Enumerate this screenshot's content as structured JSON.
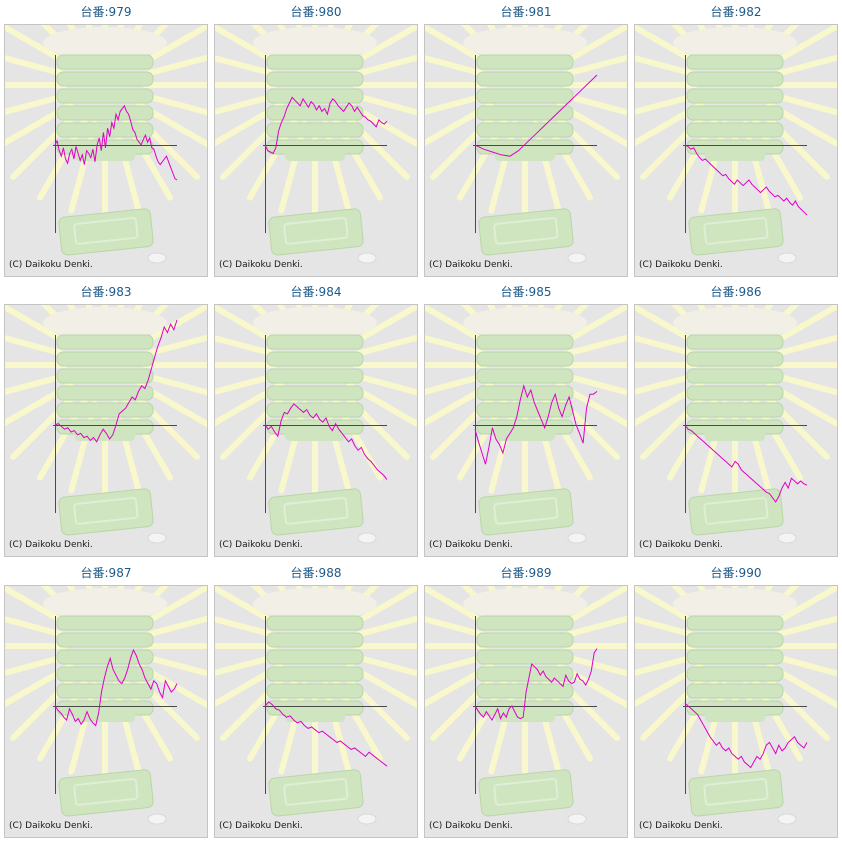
{
  "chart_data": [
    {
      "type": "line",
      "title": "台番:979",
      "y": [
        0,
        3,
        -4,
        -8,
        -2,
        -10,
        -13,
        -6,
        -3,
        -10,
        -1,
        -6,
        -11,
        -7,
        -14,
        -4,
        -6,
        -9,
        -3,
        -12,
        0,
        5,
        -4,
        9,
        -2,
        12,
        6,
        16,
        12,
        22,
        18,
        24,
        26,
        28,
        24,
        22,
        17,
        11,
        9,
        4,
        2,
        0,
        4,
        7,
        2,
        5,
        -2,
        -3,
        -8,
        -12,
        -14,
        -12,
        -10,
        -8,
        -12,
        -16,
        -20,
        -24,
        -25
      ],
      "baseline": 0,
      "range": [
        -30,
        30
      ]
    },
    {
      "type": "line",
      "title": "台番:980",
      "y": [
        0,
        -4,
        -5,
        -6,
        -2,
        10,
        16,
        20,
        26,
        30,
        34,
        32,
        30,
        28,
        33,
        30,
        27,
        31,
        29,
        25,
        28,
        24,
        26,
        22,
        30,
        33,
        31,
        28,
        26,
        24,
        27,
        30,
        28,
        24,
        27,
        24,
        21,
        20,
        18,
        17,
        15,
        13,
        18,
        16,
        15,
        17
      ],
      "baseline": 0,
      "range": [
        -30,
        30
      ]
    },
    {
      "type": "line",
      "title": "台番:981",
      "y": [
        0,
        -3,
        -5,
        -7,
        -8,
        -4,
        2,
        8,
        14,
        20,
        26,
        32,
        38,
        44,
        50
      ],
      "baseline": 0,
      "range": [
        -30,
        30
      ]
    },
    {
      "type": "line",
      "title": "台番:982",
      "y": [
        0,
        -1,
        -3,
        -2,
        -6,
        -9,
        -11,
        -10,
        -12,
        -14,
        -16,
        -18,
        -20,
        -22,
        -21,
        -24,
        -26,
        -28,
        -25,
        -27,
        -29,
        -27,
        -25,
        -28,
        -30,
        -32,
        -34,
        -32,
        -30,
        -33,
        -35,
        -37,
        -36,
        -38,
        -40,
        -38,
        -41,
        -43,
        -40,
        -44,
        -46,
        -48,
        -50
      ],
      "baseline": 0,
      "range": [
        -30,
        30
      ]
    },
    {
      "type": "line",
      "title": "台番:983",
      "y": [
        0,
        1,
        -1,
        -3,
        -2,
        -5,
        -4,
        -7,
        -6,
        -9,
        -8,
        -11,
        -9,
        -12,
        -7,
        -3,
        -6,
        -10,
        -7,
        0,
        8,
        10,
        12,
        16,
        20,
        18,
        24,
        28,
        26,
        32,
        40,
        48,
        56,
        62,
        70,
        66,
        72,
        68,
        75
      ],
      "baseline": 0,
      "range": [
        -30,
        30
      ]
    },
    {
      "type": "line",
      "title": "台番:984",
      "y": [
        0,
        -3,
        -1,
        -5,
        -8,
        3,
        9,
        8,
        12,
        15,
        13,
        11,
        9,
        11,
        7,
        5,
        8,
        4,
        2,
        5,
        -1,
        -4,
        1,
        -3,
        -6,
        -9,
        -12,
        -10,
        -15,
        -18,
        -16,
        -21,
        -24,
        -26,
        -29,
        -32,
        -34,
        -36,
        -39
      ],
      "baseline": 0,
      "range": [
        -30,
        30
      ]
    },
    {
      "type": "line",
      "title": "台番:985",
      "y": [
        -3,
        -12,
        -20,
        -28,
        -16,
        -2,
        -10,
        -14,
        -20,
        -10,
        -6,
        -2,
        6,
        18,
        28,
        20,
        25,
        16,
        10,
        4,
        -2,
        6,
        16,
        22,
        12,
        6,
        14,
        20,
        10,
        0,
        -6,
        -13,
        12,
        22,
        22,
        24
      ],
      "baseline": 0,
      "range": [
        -30,
        30
      ]
    },
    {
      "type": "line",
      "title": "台番:986",
      "y": [
        0,
        -3,
        -4,
        -6,
        -8,
        -10,
        -12,
        -14,
        -16,
        -18,
        -20,
        -22,
        -24,
        -26,
        -28,
        -30,
        -26,
        -28,
        -32,
        -34,
        -36,
        -38,
        -40,
        -42,
        -44,
        -46,
        -48,
        -49,
        -52,
        -55,
        -51,
        -45,
        -41,
        -45,
        -38,
        -40,
        -42,
        -40,
        -42,
        -43
      ],
      "baseline": 0,
      "range": [
        -30,
        30
      ]
    },
    {
      "type": "line",
      "title": "台番:987",
      "y": [
        0,
        -3,
        -5,
        -8,
        -10,
        -2,
        -6,
        -11,
        -9,
        -13,
        -10,
        -4,
        -9,
        -12,
        -14,
        -5,
        10,
        20,
        28,
        34,
        26,
        22,
        18,
        16,
        20,
        26,
        34,
        40,
        36,
        30,
        26,
        20,
        16,
        12,
        18,
        16,
        10,
        6,
        18,
        14,
        10,
        12,
        16
      ],
      "baseline": 0,
      "range": [
        -30,
        30
      ]
    },
    {
      "type": "line",
      "title": "台番:988",
      "y": [
        0,
        3,
        1,
        -2,
        -3,
        -6,
        -8,
        -7,
        -10,
        -12,
        -11,
        -14,
        -16,
        -15,
        -17,
        -19,
        -18,
        -20,
        -22,
        -24,
        -26,
        -25,
        -27,
        -29,
        -31,
        -30,
        -32,
        -34,
        -36,
        -33,
        -35,
        -37,
        -39,
        -41,
        -43
      ],
      "baseline": 0,
      "range": [
        -30,
        30
      ]
    },
    {
      "type": "line",
      "title": "台番:989",
      "y": [
        0,
        -3,
        -6,
        -8,
        -4,
        -7,
        -10,
        -6,
        -2,
        -9,
        -5,
        -8,
        -2,
        0,
        -4,
        -8,
        -9,
        -8,
        10,
        20,
        30,
        28,
        26,
        22,
        25,
        21,
        19,
        17,
        20,
        18,
        16,
        14,
        22,
        18,
        16,
        17,
        23,
        19,
        18,
        15,
        19,
        25,
        38,
        41
      ],
      "baseline": 0,
      "range": [
        -30,
        30
      ]
    },
    {
      "type": "line",
      "title": "台番:990",
      "y": [
        2,
        0,
        -2,
        -4,
        -6,
        -10,
        -14,
        -18,
        -22,
        -25,
        -28,
        -26,
        -30,
        -32,
        -30,
        -34,
        -36,
        -38,
        -36,
        -40,
        -42,
        -44,
        -40,
        -36,
        -38,
        -34,
        -28,
        -26,
        -30,
        -34,
        -28,
        -32,
        -30,
        -26,
        -24,
        -22,
        -26,
        -28,
        -30,
        -26
      ],
      "baseline": 0,
      "range": [
        -30,
        30
      ]
    }
  ],
  "copyright": "(C) Daikoku Denki.",
  "colors": {
    "line": "#e000c8",
    "axis": "#4a4a4a",
    "title": "#1d5a8a",
    "panel": "#e5e5e5",
    "ray": "#f8f8cc",
    "machine": "#cfe5c0"
  }
}
